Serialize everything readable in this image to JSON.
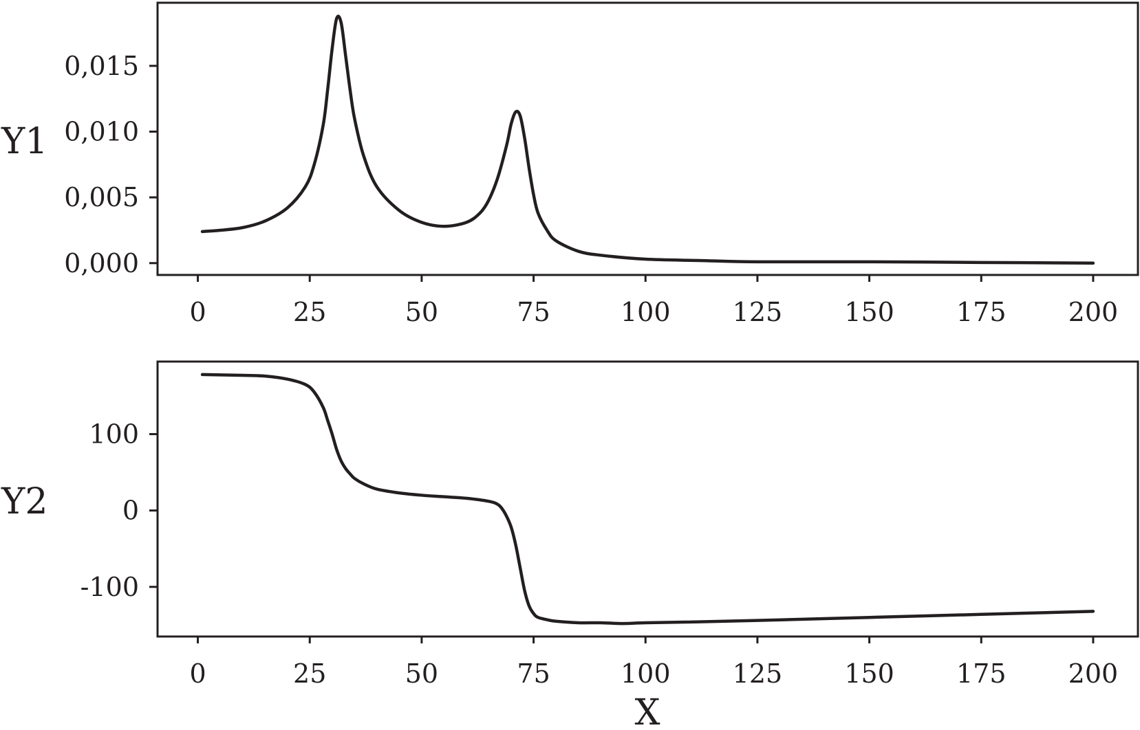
{
  "chart_data": [
    {
      "type": "line",
      "title": "",
      "xlabel": "",
      "ylabel": "Y1",
      "xlim": [
        -9,
        210
      ],
      "ylim": [
        -0.0009,
        0.0198
      ],
      "xticks": [
        0,
        25,
        50,
        75,
        100,
        125,
        150,
        175,
        200
      ],
      "xtick_labels": [
        "0",
        "25",
        "50",
        "75",
        "100",
        "125",
        "150",
        "175",
        "200"
      ],
      "yticks": [
        0,
        0.005,
        0.01,
        0.015
      ],
      "ytick_labels": [
        "0,000",
        "0,005",
        "0,010",
        "0,015"
      ],
      "grid": false,
      "series": [
        {
          "x": [
            1,
            5,
            10,
            15,
            20,
            24,
            26,
            28,
            29,
            30,
            31,
            32,
            33,
            34,
            35,
            37,
            40,
            45,
            50,
            55,
            60,
            63,
            65,
            67,
            69,
            70,
            71,
            72,
            73,
            74,
            75,
            76,
            78,
            80,
            85,
            90,
            100,
            112,
            125,
            150,
            175,
            200
          ],
          "y": [
            0.0024,
            0.0025,
            0.0027,
            0.0032,
            0.0042,
            0.0058,
            0.0075,
            0.0105,
            0.0132,
            0.0163,
            0.0186,
            0.0183,
            0.0158,
            0.0132,
            0.011,
            0.0082,
            0.0058,
            0.004,
            0.0031,
            0.0028,
            0.0031,
            0.0038,
            0.0048,
            0.0065,
            0.009,
            0.0106,
            0.0115,
            0.0112,
            0.0095,
            0.0072,
            0.0052,
            0.0038,
            0.0025,
            0.0017,
            0.0009,
            0.0006,
            0.0003,
            0.0002,
            0.0001,
            0.0001,
            5e-05,
            0.0
          ]
        }
      ]
    },
    {
      "type": "line",
      "title": "",
      "xlabel": "X",
      "ylabel": "Y2",
      "xlim": [
        -9,
        210
      ],
      "ylim": [
        -165,
        195
      ],
      "xticks": [
        0,
        25,
        50,
        75,
        100,
        125,
        150,
        175,
        200
      ],
      "xtick_labels": [
        "0",
        "25",
        "50",
        "75",
        "100",
        "125",
        "150",
        "175",
        "200"
      ],
      "yticks": [
        -100,
        0,
        100
      ],
      "ytick_labels": [
        "-100",
        "0",
        "100"
      ],
      "grid": false,
      "series": [
        {
          "x": [
            1,
            10,
            15,
            20,
            24,
            26,
            28,
            29,
            30,
            31,
            32,
            33,
            34,
            35,
            37,
            40,
            45,
            50,
            55,
            60,
            65,
            67,
            68,
            69,
            70,
            71,
            72,
            73,
            74,
            75,
            76,
            78,
            80,
            85,
            90,
            95,
            100,
            110,
            125,
            150,
            175,
            200
          ],
          "y": [
            178,
            177,
            176,
            172,
            165,
            155,
            135,
            118,
            100,
            80,
            65,
            55,
            48,
            42,
            35,
            28,
            23,
            20,
            18,
            16,
            12,
            8,
            2,
            -8,
            -22,
            -45,
            -75,
            -105,
            -125,
            -135,
            -140,
            -143,
            -145,
            -147,
            -147,
            -148,
            -147,
            -146,
            -144,
            -140,
            -136,
            -132
          ]
        }
      ]
    }
  ]
}
